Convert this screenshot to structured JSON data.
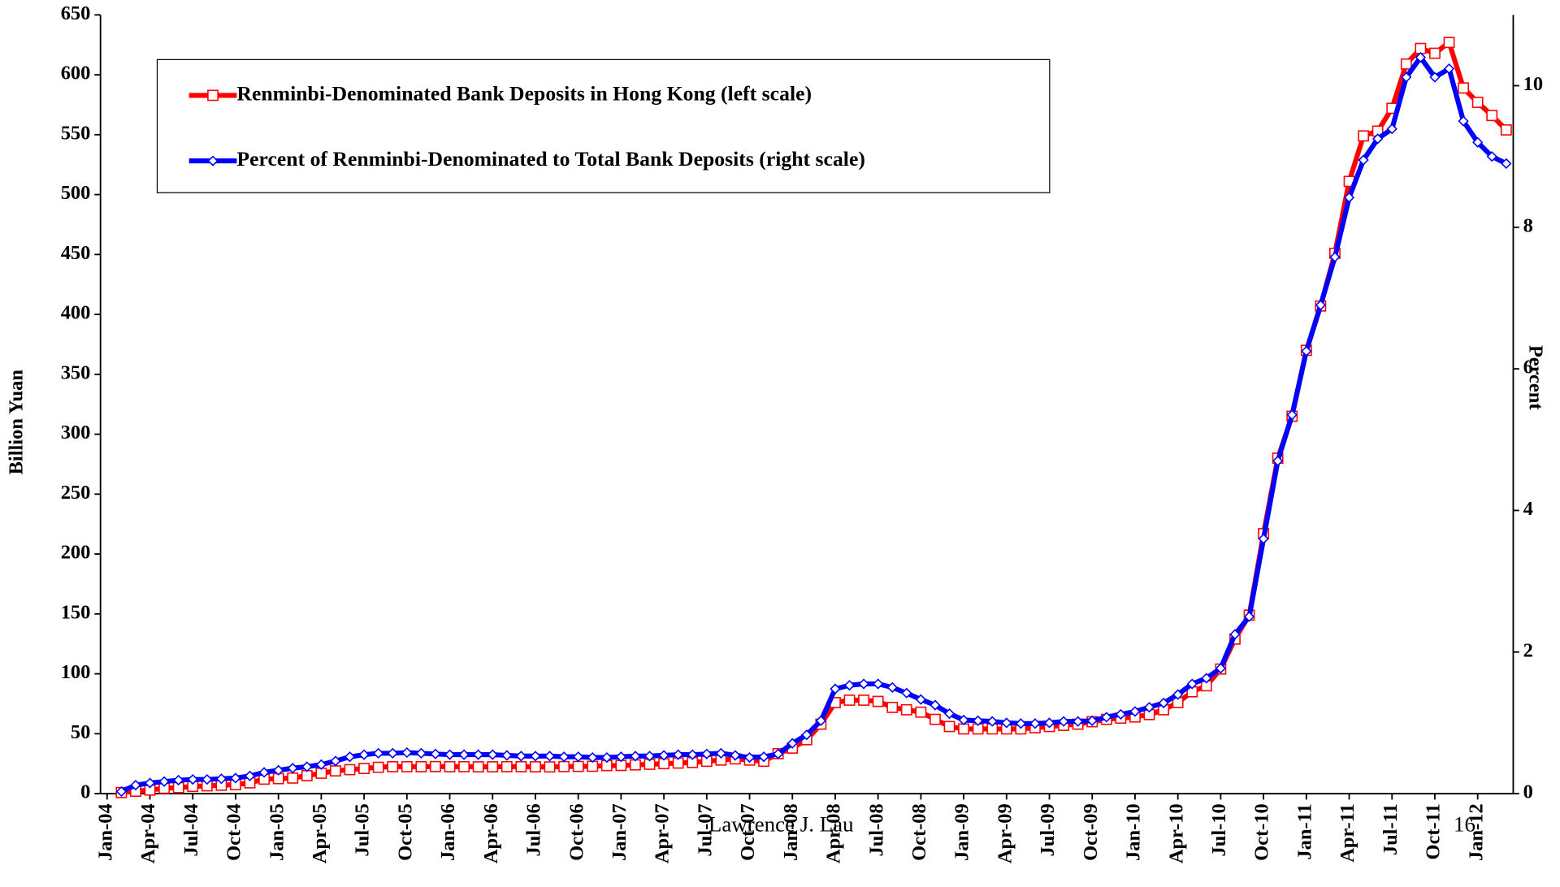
{
  "chart_data": {
    "type": "line",
    "categories": [
      "Jan-04",
      null,
      null,
      "Apr-04",
      null,
      null,
      "Jul-04",
      null,
      null,
      "Oct-04",
      null,
      null,
      "Jan-05",
      null,
      null,
      "Apr-05",
      null,
      null,
      "Jul-05",
      null,
      null,
      "Oct-05",
      null,
      null,
      "Jan-06",
      null,
      null,
      "Apr-06",
      null,
      null,
      "Jul-06",
      null,
      null,
      "Oct-06",
      null,
      null,
      "Jan-07",
      null,
      null,
      "Apr-07",
      null,
      null,
      "Jul-07",
      null,
      null,
      "Oct-07",
      null,
      null,
      "Jan-08",
      null,
      null,
      "Apr-08",
      null,
      null,
      "Jul-08",
      null,
      null,
      "Oct-08",
      null,
      null,
      "Jan-09",
      null,
      null,
      "Apr-09",
      null,
      null,
      "Jul-09",
      null,
      null,
      "Oct-09",
      null,
      null,
      "Jan-10",
      null,
      null,
      "Apr-10",
      null,
      null,
      "Jul-10",
      null,
      null,
      "Oct-10",
      null,
      null,
      "Jan-11",
      null,
      null,
      "Apr-11",
      null,
      null,
      "Jul-11",
      null,
      null,
      "Oct-11",
      null,
      null,
      "Jan-12",
      null,
      null
    ],
    "series": [
      {
        "name": "Renminbi-Denominated Bank Deposits in Hong Kong (left scale)",
        "color": "#ff0000",
        "values": [
          null,
          0.9,
          2.0,
          3.0,
          4.5,
          5.0,
          6,
          6.5,
          7,
          7.5,
          9,
          12.1,
          12.5,
          13,
          15,
          17,
          19,
          20,
          21,
          22,
          22.5,
          22.5,
          22.5,
          22.6,
          22.5,
          22.5,
          22.4,
          22.4,
          22.5,
          22.5,
          22.4,
          22.3,
          22.6,
          22.7,
          22.8,
          23.4,
          23.5,
          24,
          24.5,
          25,
          25.5,
          26,
          27,
          28,
          29,
          28,
          27,
          33.4,
          38,
          45,
          58,
          76,
          78,
          78,
          77,
          72,
          70,
          68,
          62,
          56,
          54,
          54,
          54,
          54,
          54,
          55,
          56,
          57,
          58,
          60,
          62,
          63,
          64,
          66,
          70,
          76,
          85,
          90,
          104,
          129,
          149,
          217,
          280,
          315,
          370,
          407,
          451,
          511,
          549,
          553,
          572,
          609,
          622,
          618,
          627,
          589,
          577,
          566,
          554
        ]
      },
      {
        "name": "Percent of Renminbi-Denominated to Total Bank Deposits (right scale)",
        "color": "#0000ff",
        "axis": "y2",
        "values": [
          null,
          0.03,
          0.12,
          0.15,
          0.17,
          0.19,
          0.2,
          0.2,
          0.21,
          0.22,
          0.25,
          0.3,
          0.33,
          0.36,
          0.38,
          0.41,
          0.46,
          0.52,
          0.55,
          0.57,
          0.57,
          0.58,
          0.57,
          0.56,
          0.55,
          0.55,
          0.55,
          0.55,
          0.54,
          0.53,
          0.53,
          0.53,
          0.52,
          0.52,
          0.51,
          0.51,
          0.52,
          0.53,
          0.53,
          0.54,
          0.55,
          0.55,
          0.56,
          0.57,
          0.54,
          0.51,
          0.52,
          0.56,
          0.71,
          0.83,
          1.03,
          1.48,
          1.53,
          1.55,
          1.55,
          1.5,
          1.42,
          1.33,
          1.25,
          1.13,
          1.04,
          1.03,
          1.02,
          1.0,
          0.99,
          0.99,
          1.0,
          1.02,
          1.02,
          1.03,
          1.08,
          1.12,
          1.16,
          1.22,
          1.28,
          1.4,
          1.55,
          1.63,
          1.77,
          2.25,
          2.5,
          3.6,
          4.7,
          5.35,
          6.25,
          6.9,
          7.58,
          8.42,
          8.95,
          9.25,
          9.39,
          10.12,
          10.4,
          10.12,
          10.24,
          9.5,
          9.2,
          9.0,
          8.9
        ]
      }
    ],
    "ylabel": "Billion Yuan",
    "y2label": "Percent",
    "ylim": [
      0,
      650
    ],
    "yticks": [
      0,
      50,
      100,
      150,
      200,
      250,
      300,
      350,
      400,
      450,
      500,
      550,
      600,
      650
    ],
    "y2lim": [
      0,
      11
    ],
    "y2ticks": [
      0,
      2,
      4,
      6,
      8,
      10
    ],
    "legend": "upper left",
    "footer": "Lawrence J. Lau",
    "page_number": "16"
  }
}
